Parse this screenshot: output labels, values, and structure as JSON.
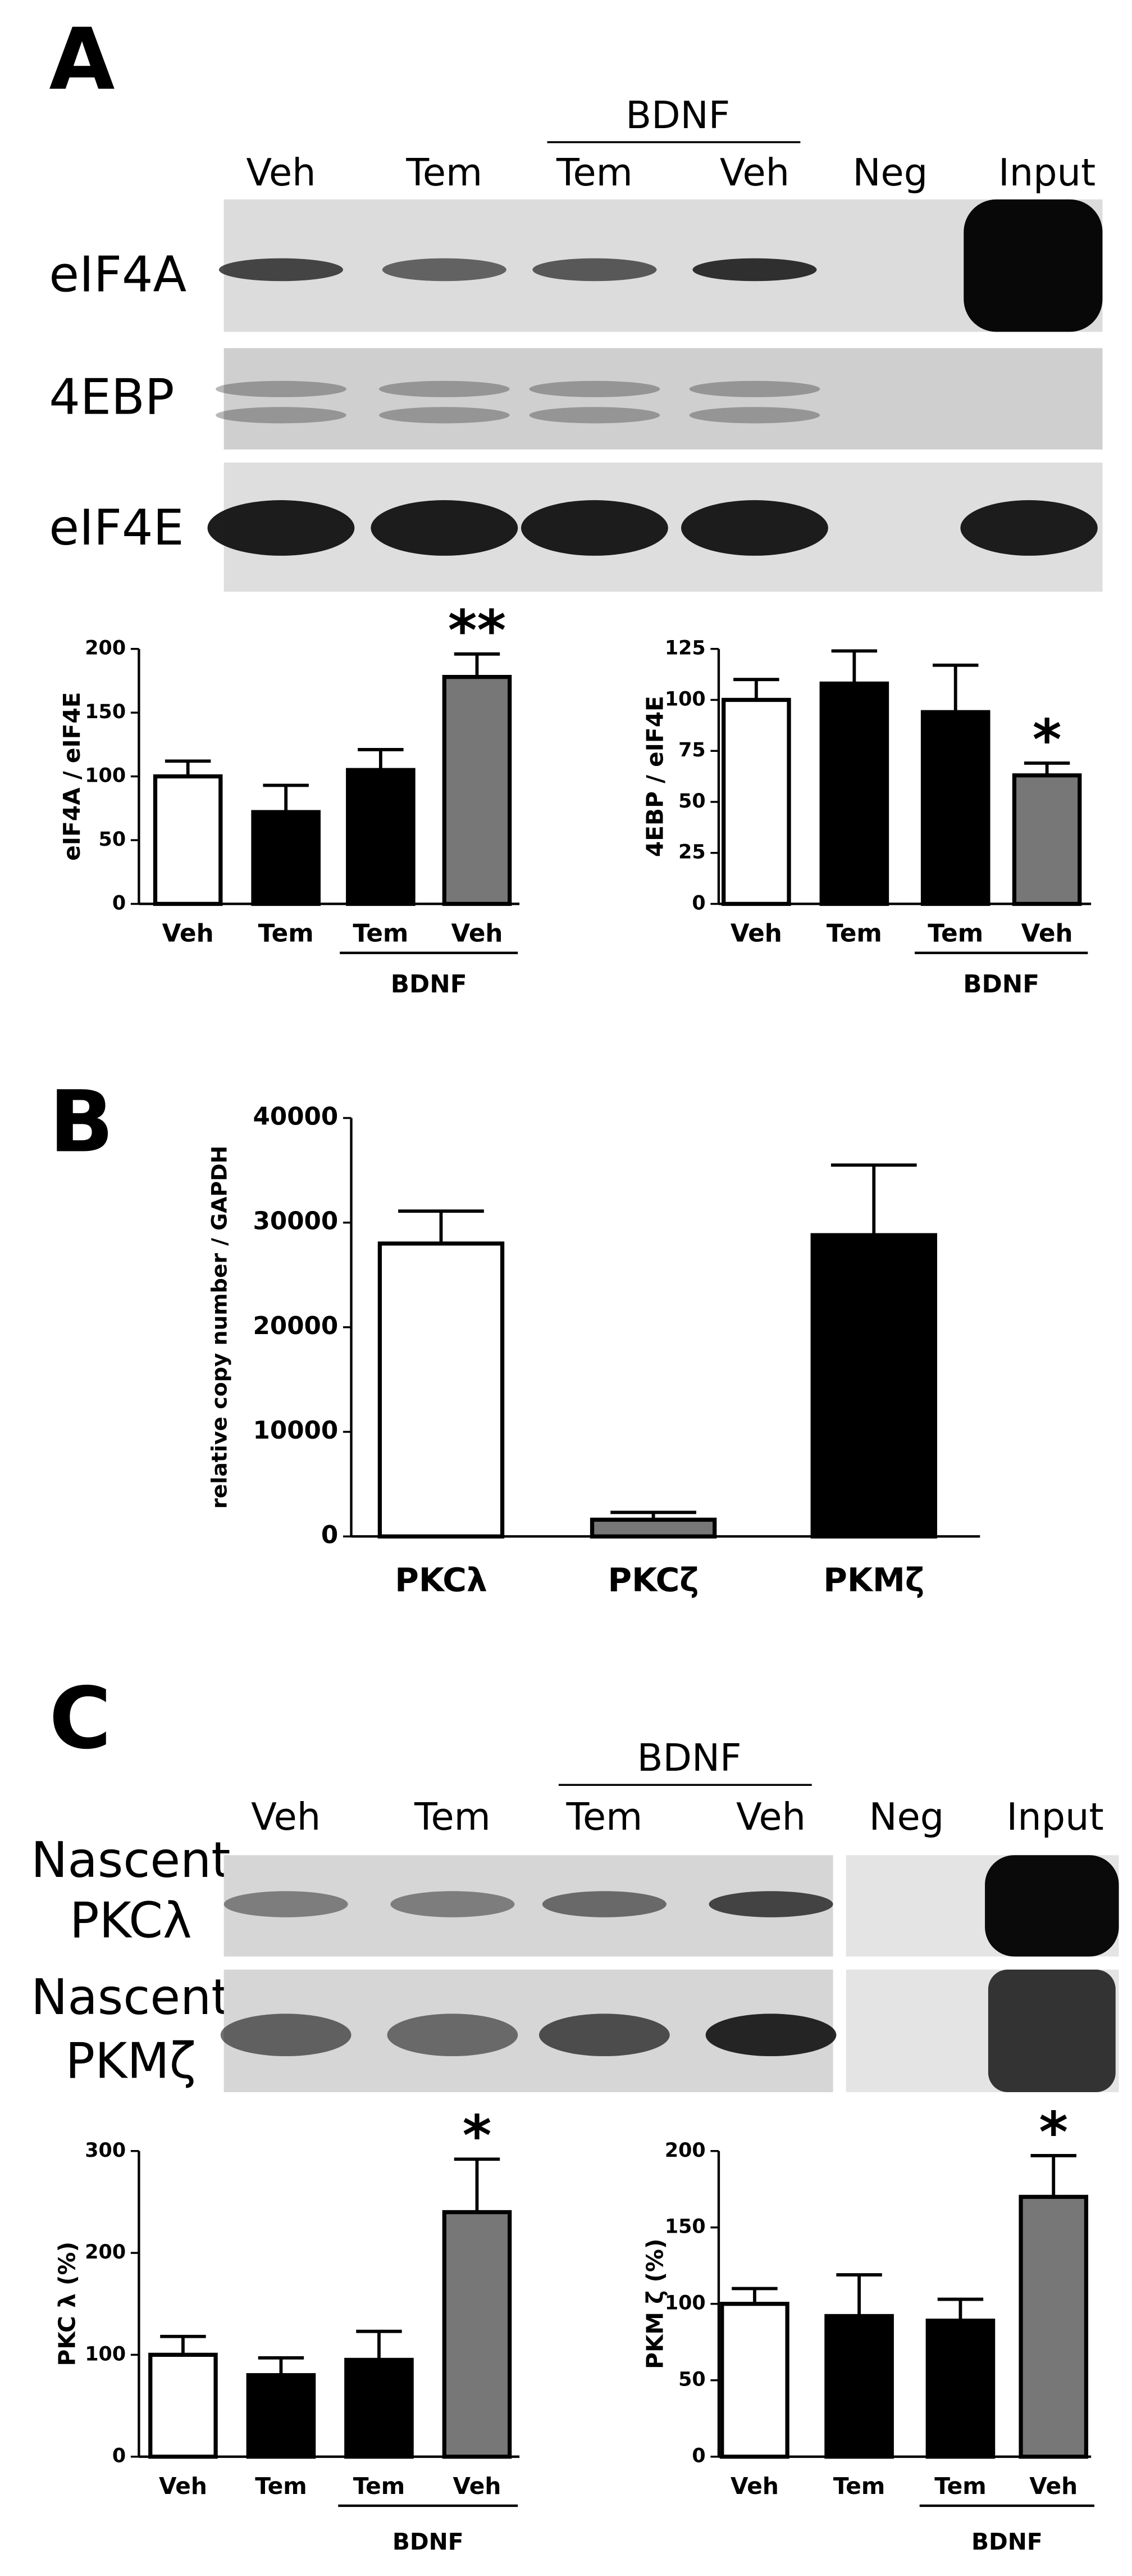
{
  "panel_labels": [
    "A",
    "B",
    "C"
  ],
  "panel_a_blot": {
    "group_label": "BDNF",
    "lanes": [
      "Veh",
      "Tem",
      "Tem",
      "Veh",
      "Neg",
      "Input"
    ],
    "rows": [
      "eIF4A",
      "4EBP",
      "eIF4E"
    ]
  },
  "panel_c_blot": {
    "group_label": "BDNF",
    "lanes": [
      "Veh",
      "Tem",
      "Tem",
      "Veh",
      "Neg",
      "Input"
    ],
    "rows": [
      [
        "Nascent",
        "PKCλ"
      ],
      [
        "Nascent",
        "PKMζ"
      ]
    ]
  },
  "chart_data": [
    {
      "type": "bar",
      "y_label": "eIF4A / eIF4E",
      "categories": [
        "Veh",
        "Tem",
        "Tem",
        "Veh"
      ],
      "values": [
        100,
        72,
        105,
        178
      ],
      "errors": [
        12,
        21,
        16,
        18
      ],
      "colors": [
        "#ffffff",
        "#000000",
        "#000000",
        "#777777"
      ],
      "ylim": [
        0,
        200
      ],
      "yticks": [
        0,
        50,
        100,
        150,
        200
      ],
      "group": {
        "label": "BDNF",
        "categories": [
          2,
          3
        ]
      },
      "annotations": [
        {
          "text": "**",
          "category": 3
        }
      ]
    },
    {
      "type": "bar",
      "y_label": "4EBP / eIF4E",
      "categories": [
        "Veh",
        "Tem",
        "Tem",
        "Veh"
      ],
      "values": [
        100,
        108,
        94,
        63
      ],
      "errors": [
        10,
        16,
        23,
        6
      ],
      "colors": [
        "#ffffff",
        "#000000",
        "#000000",
        "#777777"
      ],
      "ylim": [
        0,
        125
      ],
      "yticks": [
        0,
        25,
        50,
        75,
        100,
        125
      ],
      "group": {
        "label": "BDNF",
        "categories": [
          2,
          3
        ]
      },
      "annotations": [
        {
          "text": "*",
          "category": 3
        }
      ]
    },
    {
      "type": "bar",
      "y_label": "relative copy number / GAPDH",
      "categories": [
        "PKCλ",
        "PKCζ",
        "PKMζ"
      ],
      "values": [
        28000,
        1600,
        28800
      ],
      "errors": [
        3100,
        700,
        6700
      ],
      "colors": [
        "#ffffff",
        "#777777",
        "#000000"
      ],
      "ylim": [
        0,
        40000
      ],
      "yticks": [
        0,
        10000,
        20000,
        30000,
        40000
      ],
      "error_bars": "both"
    },
    {
      "type": "bar",
      "y_label": "PKC λ (%)",
      "categories": [
        "Veh",
        "Tem",
        "Tem",
        "Veh"
      ],
      "values": [
        100,
        80,
        95,
        240
      ],
      "errors": [
        18,
        17,
        28,
        52
      ],
      "colors": [
        "#ffffff",
        "#000000",
        "#000000",
        "#777777"
      ],
      "ylim": [
        0,
        300
      ],
      "yticks": [
        0,
        100,
        200,
        300
      ],
      "group": {
        "label": "BDNF",
        "categories": [
          2,
          3
        ]
      },
      "annotations": [
        {
          "text": "*",
          "category": 3
        }
      ]
    },
    {
      "type": "bar",
      "y_label": "PKM ζ (%)",
      "categories": [
        "Veh",
        "Tem",
        "Tem",
        "Veh"
      ],
      "values": [
        100,
        92,
        89,
        170
      ],
      "errors": [
        10,
        27,
        14,
        27
      ],
      "colors": [
        "#ffffff",
        "#000000",
        "#000000",
        "#777777"
      ],
      "ylim": [
        0,
        200
      ],
      "yticks": [
        0,
        50,
        100,
        150,
        200
      ],
      "group": {
        "label": "BDNF",
        "categories": [
          2,
          3
        ]
      },
      "annotations": [
        {
          "text": "*",
          "category": 3
        }
      ]
    }
  ]
}
